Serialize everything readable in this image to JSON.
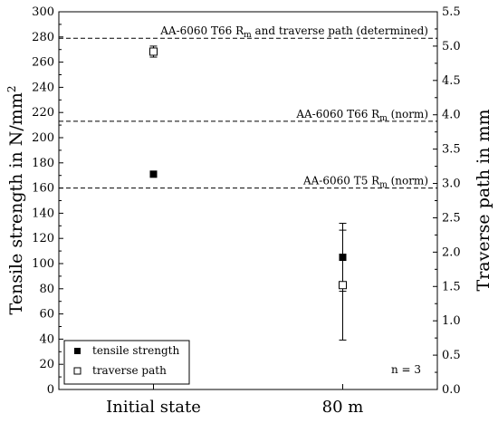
{
  "chart_data": {
    "type": "scatter",
    "categories": [
      "Initial state",
      "80 m"
    ],
    "xlabel": "",
    "ylabel": "Tensile strength in N/mm",
    "ylabel_superscript": "2",
    "y2label": "Traverse path in mm",
    "ylim": [
      0,
      300
    ],
    "y_ticks": [
      0,
      20,
      40,
      60,
      80,
      100,
      120,
      140,
      160,
      180,
      200,
      220,
      240,
      260,
      280,
      300
    ],
    "y2lim": [
      0.0,
      5.5
    ],
    "y2_ticks": [
      "0.0",
      "0.5",
      "1.0",
      "1.5",
      "2.0",
      "2.5",
      "3.0",
      "3.5",
      "4.0",
      "4.5",
      "5.0",
      "5.5"
    ],
    "grid": false,
    "legend_position": "bottom-left",
    "series": [
      {
        "name": "tensile strength",
        "axis": "left",
        "marker": "filled-square",
        "values": [
          171,
          105
        ],
        "errors": [
          0,
          27
        ]
      },
      {
        "name": "traverse path",
        "axis": "right",
        "marker": "open-square",
        "values": [
          4.92,
          1.52
        ],
        "errors": [
          0.08,
          0.8
        ]
      }
    ],
    "reference_lines": [
      {
        "value": 279,
        "prefix": "AA-6060 T66 R",
        "sub": "m",
        "suffix": " and traverse path (determined)"
      },
      {
        "value": 213,
        "prefix": "AA-6060 T66 R",
        "sub": "m",
        "suffix": " (norm)"
      },
      {
        "value": 160,
        "prefix": "AA-6060 T5 R",
        "sub": "m",
        "suffix": " (norm)"
      }
    ],
    "annotation": "n = 3"
  }
}
